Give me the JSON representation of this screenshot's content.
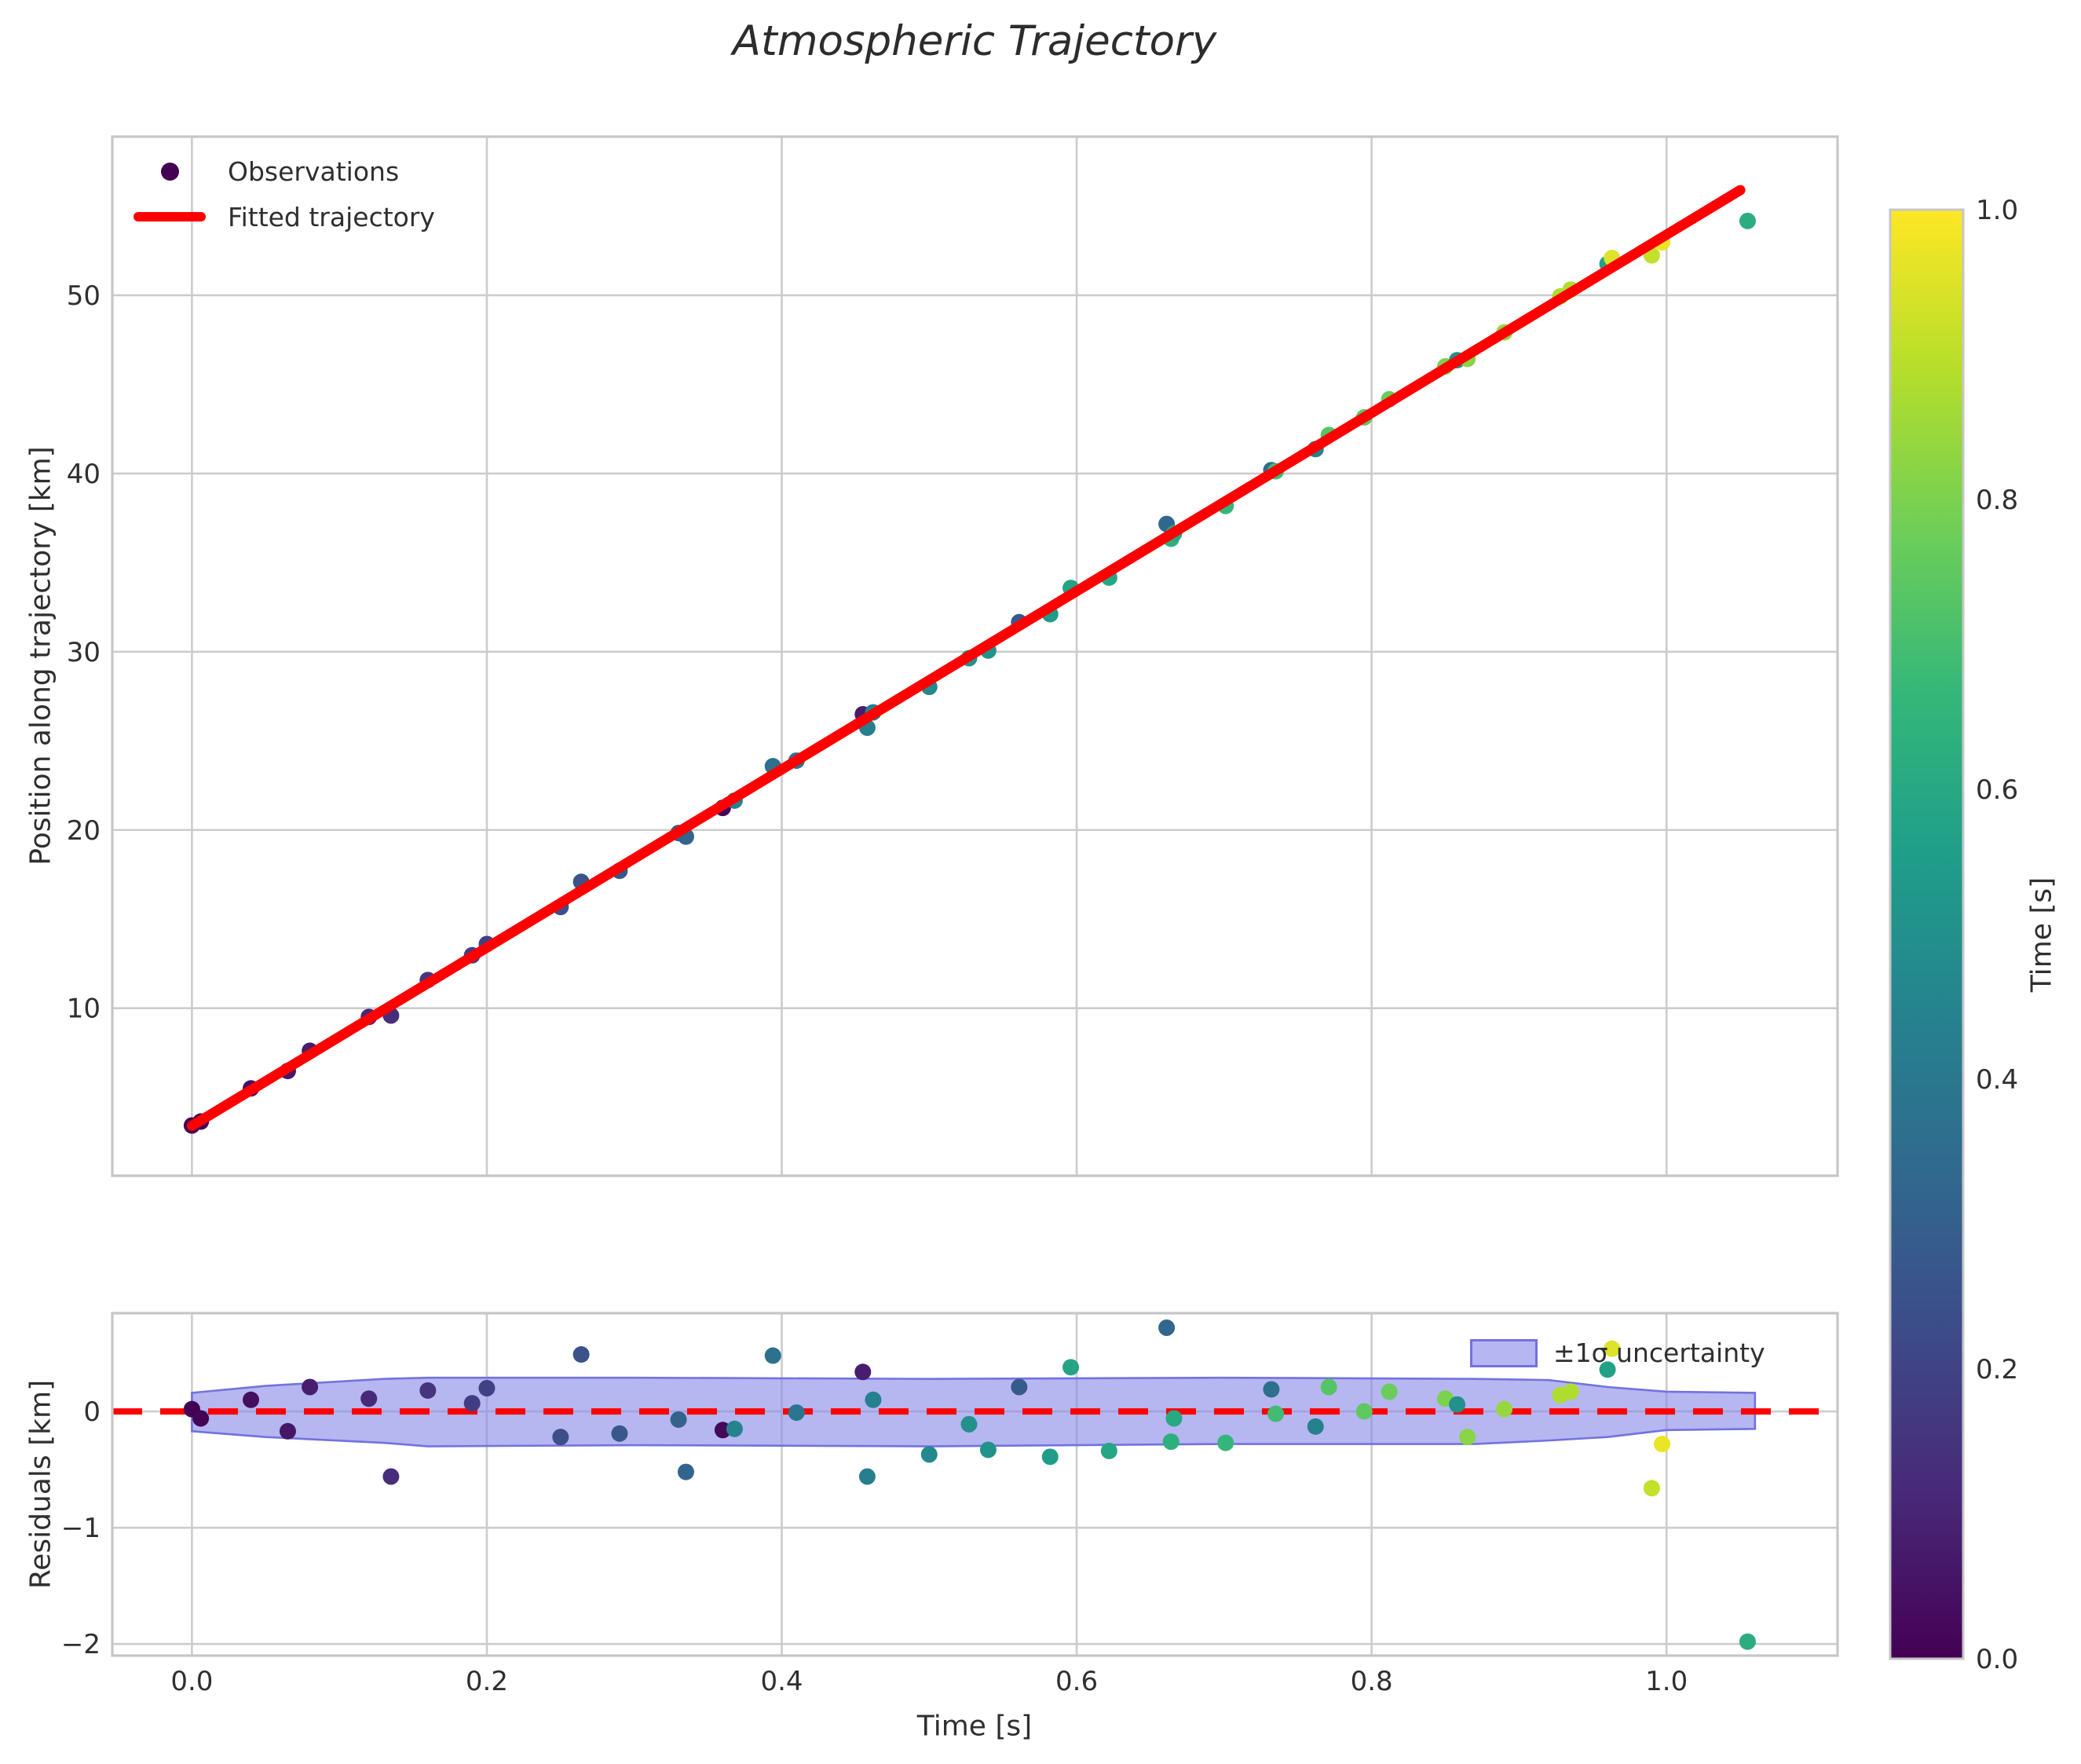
{
  "title": "Atmospheric Trajectory",
  "styles": {
    "fit_line_color": "#fe0000",
    "zero_line_color": "#fe0000",
    "band_fill": "#8585e8",
    "band_fill_opacity": 0.6,
    "band_edge": "#7272e0",
    "grid_color": "#cccccc",
    "spine_color": "#c6c6c6",
    "text_color": "#2f2f2f",
    "background": "#ffffff",
    "first_obs_color": "#440154"
  },
  "chart_data": [
    {
      "type": "scatter",
      "panel": "trajectory",
      "title": "Atmospheric Trajectory",
      "ylabel": "Position along trajectory [km]",
      "xlim": [
        -0.054,
        1.116
      ],
      "ylim": [
        0.6,
        58.9
      ],
      "grid": true,
      "yticks": [
        {
          "v": 10,
          "label": "10"
        },
        {
          "v": 20,
          "label": "20"
        },
        {
          "v": 30,
          "label": "30"
        },
        {
          "v": 40,
          "label": "40"
        },
        {
          "v": 50,
          "label": "50"
        }
      ],
      "xgrid_values": [
        0.0,
        0.2,
        0.4,
        0.6,
        0.8,
        1.0
      ],
      "legend": [
        {
          "label": "Observations",
          "marker": "dot"
        },
        {
          "label": "Fitted trajectory",
          "marker": "line"
        }
      ],
      "legend_position": "upper left",
      "fit": {
        "slope": 50.0,
        "intercept": 3.4,
        "t_start": 0.0,
        "t_end": 1.05
      },
      "points": {
        "t": [
          0.0,
          0.006,
          0.04,
          0.065,
          0.08,
          0.12,
          0.135,
          0.16,
          0.19,
          0.2,
          0.25,
          0.264,
          0.29,
          0.33,
          0.335,
          0.36,
          0.368,
          0.394,
          0.41,
          0.455,
          0.458,
          0.462,
          0.5,
          0.527,
          0.54,
          0.561,
          0.582,
          0.596,
          0.622,
          0.661,
          0.664,
          0.666,
          0.701,
          0.732,
          0.735,
          0.762,
          0.771,
          0.795,
          0.812,
          0.85,
          0.858,
          0.865,
          0.89,
          0.928,
          0.935,
          0.96,
          0.963,
          0.99,
          0.997,
          1.055
        ],
        "residual": [
          0.02,
          -0.06,
          0.1,
          -0.17,
          0.21,
          0.11,
          -0.56,
          0.18,
          0.07,
          0.2,
          -0.22,
          0.49,
          -0.19,
          -0.07,
          -0.52,
          -0.16,
          -0.15,
          0.48,
          -0.01,
          0.34,
          -0.56,
          0.1,
          -0.37,
          -0.11,
          -0.33,
          0.21,
          -0.39,
          0.38,
          -0.34,
          0.72,
          -0.26,
          -0.06,
          -0.27,
          0.19,
          -0.02,
          -0.13,
          0.21,
          0.0,
          0.17,
          0.11,
          0.06,
          -0.22,
          0.02,
          0.14,
          0.17,
          0.36,
          0.54,
          -0.66,
          -0.28,
          -1.98
        ],
        "color_value": [
          0.0,
          0.01,
          0.04,
          0.06,
          0.08,
          0.11,
          0.13,
          0.15,
          0.18,
          0.19,
          0.24,
          0.25,
          0.27,
          0.31,
          0.32,
          0.02,
          0.45,
          0.37,
          0.39,
          0.08,
          0.43,
          0.44,
          0.47,
          0.5,
          0.51,
          0.28,
          0.55,
          0.58,
          0.59,
          0.33,
          0.63,
          0.6,
          0.66,
          0.36,
          0.69,
          0.44,
          0.73,
          0.75,
          0.77,
          0.8,
          0.5,
          0.82,
          0.84,
          0.88,
          0.88,
          0.57,
          0.95,
          0.91,
          0.97,
          0.62
        ]
      }
    },
    {
      "type": "residuals",
      "panel": "residuals",
      "ylabel": "Residuals [km]",
      "xlabel": "Time [s]",
      "xlim": [
        -0.054,
        1.116
      ],
      "ylim": [
        -2.1,
        0.845
      ],
      "grid": true,
      "yticks": [
        {
          "v": 0,
          "label": "0"
        },
        {
          "v": -1,
          "label": "−1"
        },
        {
          "v": -2,
          "label": "−2"
        }
      ],
      "xticks": [
        {
          "v": 0.0,
          "label": "0.0"
        },
        {
          "v": 0.2,
          "label": "0.2"
        },
        {
          "v": 0.4,
          "label": "0.4"
        },
        {
          "v": 0.6,
          "label": "0.6"
        },
        {
          "v": 0.8,
          "label": "0.8"
        },
        {
          "v": 1.0,
          "label": "1.0"
        }
      ],
      "zero_line": 0,
      "legend": {
        "band_label": "±1σ uncertainty"
      },
      "legend_position": "upper right",
      "band": {
        "t": [
          0.0,
          0.05,
          0.13,
          0.16,
          0.3,
          0.5,
          0.7,
          0.87,
          0.92,
          0.96,
          1.0,
          1.06
        ],
        "hi": [
          0.16,
          0.22,
          0.28,
          0.29,
          0.29,
          0.28,
          0.29,
          0.28,
          0.27,
          0.21,
          0.17,
          0.16
        ],
        "lo": [
          -0.17,
          -0.22,
          -0.27,
          -0.3,
          -0.29,
          -0.3,
          -0.28,
          -0.28,
          -0.25,
          -0.22,
          -0.16,
          -0.15
        ]
      }
    }
  ],
  "colorbar": {
    "label": "Time [s]",
    "range": [
      0.0,
      1.0
    ],
    "ticks": [
      {
        "v": 0.0,
        "label": "0.0"
      },
      {
        "v": 0.2,
        "label": "0.2"
      },
      {
        "v": 0.4,
        "label": "0.4"
      },
      {
        "v": 0.6,
        "label": "0.6"
      },
      {
        "v": 0.8,
        "label": "0.8"
      },
      {
        "v": 1.0,
        "label": "1.0"
      }
    ],
    "palette": [
      "#440154",
      "#482878",
      "#3e4a89",
      "#31688e",
      "#26828e",
      "#1f9e89",
      "#35b779",
      "#6ece58",
      "#b5de2b",
      "#fde725"
    ]
  }
}
